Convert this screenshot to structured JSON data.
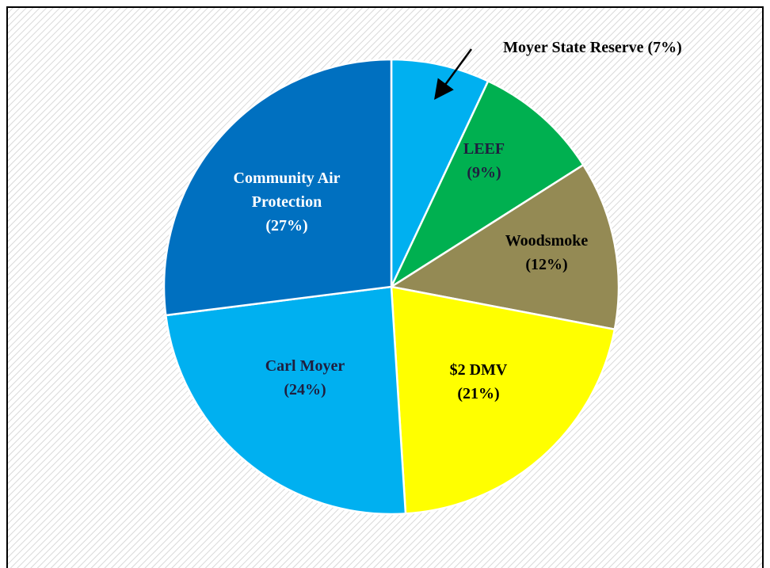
{
  "chart_data": {
    "type": "pie",
    "categories": [
      "Moyer State Reserve",
      "LEEF",
      "Woodsmoke",
      "$2 DMV",
      "Carl Moyer",
      "Community Air Protection"
    ],
    "values": [
      7,
      9,
      12,
      21,
      24,
      27
    ],
    "value_labels": [
      "(7%)",
      "(9%)",
      "(12%)",
      "(21%)",
      "(24%)",
      "(27%)"
    ],
    "colors": [
      "#00b0f0",
      "#00b050",
      "#948a54",
      "#ffff00",
      "#00b0f0",
      "#0070c0"
    ],
    "label_colors": [
      "#000000",
      "#1f1f3f",
      "#000000",
      "#000000",
      "#1f1f3f",
      "#ffffff"
    ]
  }
}
